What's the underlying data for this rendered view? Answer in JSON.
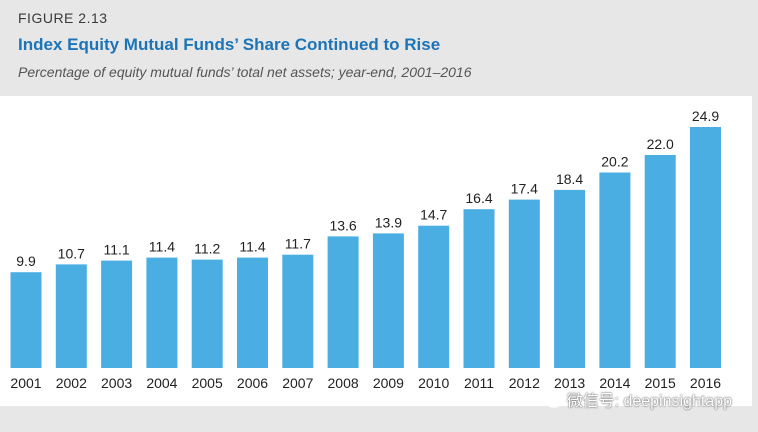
{
  "figure": {
    "label": "FIGURE 2.13",
    "title": "Index Equity Mutual Funds’ Share Continued to Rise",
    "subtitle": "Percentage of equity mutual funds’ total net assets; year-end, 2001–2016"
  },
  "watermark": {
    "icon": "wechat-icon",
    "text": "微信号: deepinsightapp"
  },
  "colors": {
    "bar": "#4aaee3",
    "title": "#1c74b8",
    "band": "#e7e7e8"
  },
  "chart_data": {
    "type": "bar",
    "title": "Index Equity Mutual Funds’ Share Continued to Rise",
    "subtitle": "Percentage of equity mutual funds’ total net assets; year-end, 2001–2016",
    "xlabel": "",
    "ylabel": "",
    "categories": [
      "2001",
      "2002",
      "2003",
      "2004",
      "2005",
      "2006",
      "2007",
      "2008",
      "2009",
      "2010",
      "2011",
      "2012",
      "2013",
      "2014",
      "2015",
      "2016"
    ],
    "values": [
      9.9,
      10.7,
      11.1,
      11.4,
      11.2,
      11.4,
      11.7,
      13.6,
      13.9,
      14.7,
      16.4,
      17.4,
      18.4,
      20.2,
      22.0,
      24.9
    ],
    "value_labels": [
      "9.9",
      "10.7",
      "11.1",
      "11.4",
      "11.2",
      "11.4",
      "11.7",
      "13.6",
      "13.9",
      "14.7",
      "16.4",
      "17.4",
      "18.4",
      "20.2",
      "22.0",
      "24.9"
    ],
    "ylim": [
      0,
      25
    ],
    "grid": false,
    "legend": "none"
  }
}
